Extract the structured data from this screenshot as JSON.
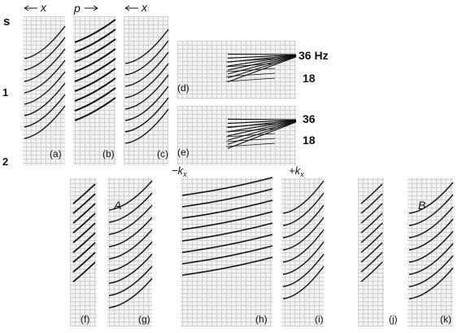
{
  "axis": {
    "unit": "s",
    "tick_1": "1",
    "tick_2": "2"
  },
  "headers": {
    "a": "x",
    "b": "p",
    "c": "x",
    "h": "−k",
    "h_sub": "x",
    "i": "+k",
    "i_sub": "x"
  },
  "freq": {
    "d_top": "36 Hz",
    "d_bottom": "18",
    "e_top": "36",
    "e_bottom": "18"
  },
  "panels": {
    "a": "(a)",
    "b": "(b)",
    "c": "(c)",
    "d": "(d)",
    "e": "(e)",
    "f": "(f)",
    "g": "(g)",
    "h": "(h)",
    "i": "(i)",
    "j": "(j)",
    "k": "(k)"
  },
  "annotations": {
    "A": "A",
    "B": "B"
  }
}
